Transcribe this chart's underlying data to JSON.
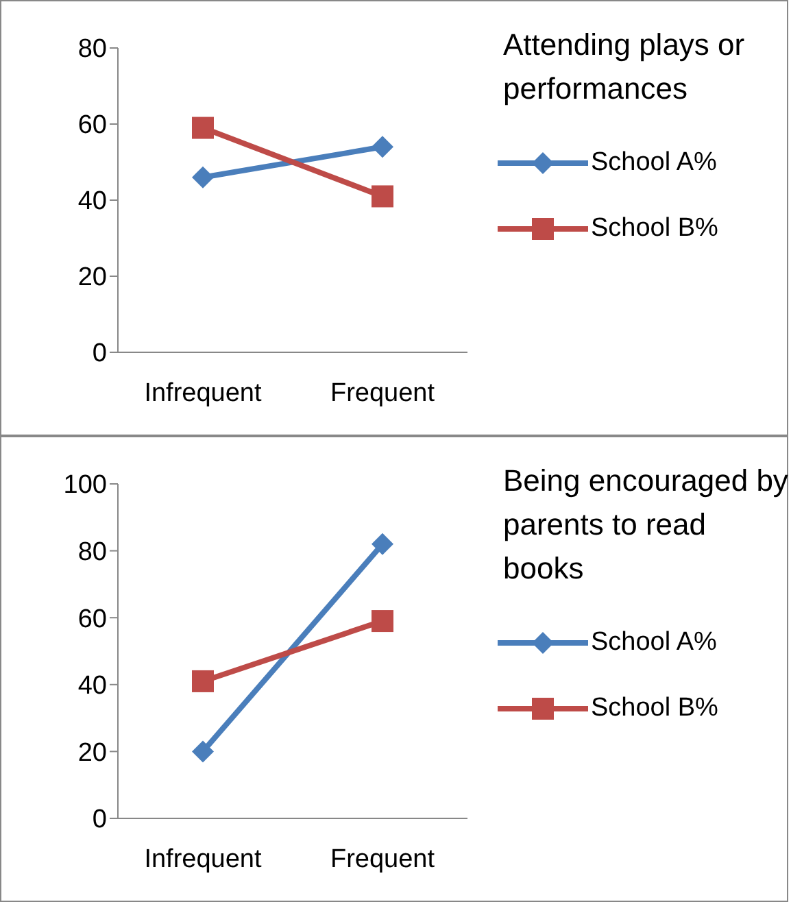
{
  "chart_data": [
    {
      "type": "line",
      "legend_title": "Attending plays or performances",
      "categories": [
        "Infrequent",
        "Frequent"
      ],
      "series": [
        {
          "name": "School A%",
          "color": "#4a7ebb",
          "marker": "diamond",
          "values": [
            46,
            54
          ]
        },
        {
          "name": "School B%",
          "color": "#be4b48",
          "marker": "square",
          "values": [
            59,
            41
          ]
        }
      ],
      "ylim": [
        0,
        80
      ],
      "yticks": [
        0,
        20,
        40,
        60,
        80
      ],
      "legend": "right"
    },
    {
      "type": "line",
      "legend_title": "Being encouraged by parents to read books",
      "categories": [
        "Infrequent",
        "Frequent"
      ],
      "series": [
        {
          "name": "School A%",
          "color": "#4a7ebb",
          "marker": "diamond",
          "values": [
            20,
            82
          ]
        },
        {
          "name": "School B%",
          "color": "#be4b48",
          "marker": "square",
          "values": [
            41,
            59
          ]
        }
      ],
      "ylim": [
        0,
        100
      ],
      "yticks": [
        0,
        20,
        40,
        60,
        80,
        100
      ],
      "legend": "right"
    }
  ]
}
